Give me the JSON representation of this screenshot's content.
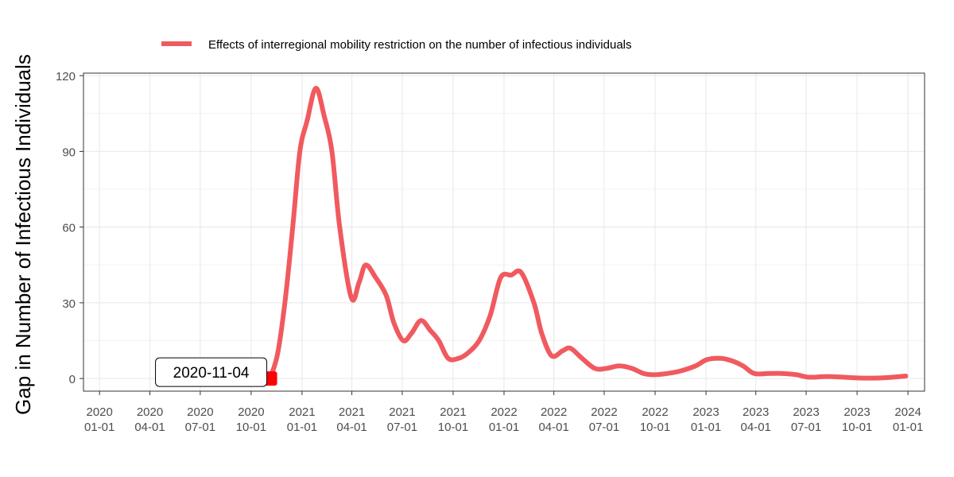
{
  "chart_data": {
    "type": "line",
    "title": "",
    "xlabel": "",
    "ylabel": "Gap in Number of Infectious Individuals",
    "legend_position": "top",
    "grid": true,
    "ylim": [
      -5,
      121
    ],
    "xlim": [
      "2019-12-03",
      "2024-01-31"
    ],
    "yticks": [
      0,
      30,
      60,
      90,
      120
    ],
    "xticks": [
      {
        "date": "2020-01-01",
        "label": [
          "2020",
          "01-01"
        ]
      },
      {
        "date": "2020-04-01",
        "label": [
          "2020",
          "04-01"
        ]
      },
      {
        "date": "2020-07-01",
        "label": [
          "2020",
          "07-01"
        ]
      },
      {
        "date": "2020-10-01",
        "label": [
          "2020",
          "10-01"
        ]
      },
      {
        "date": "2021-01-01",
        "label": [
          "2021",
          "01-01"
        ]
      },
      {
        "date": "2021-04-01",
        "label": [
          "2021",
          "04-01"
        ]
      },
      {
        "date": "2021-07-01",
        "label": [
          "2021",
          "07-01"
        ]
      },
      {
        "date": "2021-10-01",
        "label": [
          "2021",
          "10-01"
        ]
      },
      {
        "date": "2022-01-01",
        "label": [
          "2022",
          "01-01"
        ]
      },
      {
        "date": "2022-04-01",
        "label": [
          "2022",
          "04-01"
        ]
      },
      {
        "date": "2022-07-01",
        "label": [
          "2022",
          "07-01"
        ]
      },
      {
        "date": "2022-10-01",
        "label": [
          "2022",
          "10-01"
        ]
      },
      {
        "date": "2023-01-01",
        "label": [
          "2023",
          "01-01"
        ]
      },
      {
        "date": "2023-04-01",
        "label": [
          "2023",
          "04-01"
        ]
      },
      {
        "date": "2023-07-01",
        "label": [
          "2023",
          "07-01"
        ]
      },
      {
        "date": "2023-10-01",
        "label": [
          "2023",
          "10-01"
        ]
      },
      {
        "date": "2024-01-01",
        "label": [
          "2024",
          "01-01"
        ]
      }
    ],
    "series": [
      {
        "name": "Effects of interregional mobility restriction on the number of infectious individuals",
        "color": "#F05A5F",
        "points": [
          {
            "x": "2020-11-04",
            "y": 0
          },
          {
            "x": "2020-11-18",
            "y": 10
          },
          {
            "x": "2020-12-02",
            "y": 32
          },
          {
            "x": "2020-12-16",
            "y": 62
          },
          {
            "x": "2020-12-28",
            "y": 90
          },
          {
            "x": "2021-01-10",
            "y": 102
          },
          {
            "x": "2021-01-26",
            "y": 115
          },
          {
            "x": "2021-02-10",
            "y": 104
          },
          {
            "x": "2021-02-24",
            "y": 90
          },
          {
            "x": "2021-03-10",
            "y": 60
          },
          {
            "x": "2021-03-31",
            "y": 32
          },
          {
            "x": "2021-04-14",
            "y": 38
          },
          {
            "x": "2021-04-26",
            "y": 45
          },
          {
            "x": "2021-05-14",
            "y": 40
          },
          {
            "x": "2021-06-02",
            "y": 33
          },
          {
            "x": "2021-06-16",
            "y": 22
          },
          {
            "x": "2021-07-03",
            "y": 15
          },
          {
            "x": "2021-07-18",
            "y": 18
          },
          {
            "x": "2021-08-04",
            "y": 23
          },
          {
            "x": "2021-08-21",
            "y": 19
          },
          {
            "x": "2021-09-05",
            "y": 15
          },
          {
            "x": "2021-09-22",
            "y": 8
          },
          {
            "x": "2021-10-11",
            "y": 8
          },
          {
            "x": "2021-10-27",
            "y": 10
          },
          {
            "x": "2021-11-17",
            "y": 15
          },
          {
            "x": "2021-12-07",
            "y": 25
          },
          {
            "x": "2021-12-26",
            "y": 40
          },
          {
            "x": "2022-01-14",
            "y": 41
          },
          {
            "x": "2022-02-01",
            "y": 42
          },
          {
            "x": "2022-02-24",
            "y": 30
          },
          {
            "x": "2022-03-10",
            "y": 18
          },
          {
            "x": "2022-03-28",
            "y": 9
          },
          {
            "x": "2022-04-17",
            "y": 11
          },
          {
            "x": "2022-05-01",
            "y": 12
          },
          {
            "x": "2022-05-22",
            "y": 8
          },
          {
            "x": "2022-06-14",
            "y": 4
          },
          {
            "x": "2022-07-05",
            "y": 4
          },
          {
            "x": "2022-07-28",
            "y": 5
          },
          {
            "x": "2022-08-20",
            "y": 4
          },
          {
            "x": "2022-09-10",
            "y": 2
          },
          {
            "x": "2022-09-28",
            "y": 1.5
          },
          {
            "x": "2022-10-23",
            "y": 2
          },
          {
            "x": "2022-11-16",
            "y": 3
          },
          {
            "x": "2022-12-13",
            "y": 5
          },
          {
            "x": "2023-01-03",
            "y": 7.5
          },
          {
            "x": "2023-01-28",
            "y": 8
          },
          {
            "x": "2023-02-17",
            "y": 7
          },
          {
            "x": "2023-03-09",
            "y": 5
          },
          {
            "x": "2023-03-29",
            "y": 2
          },
          {
            "x": "2023-04-24",
            "y": 2
          },
          {
            "x": "2023-05-17",
            "y": 2
          },
          {
            "x": "2023-06-14",
            "y": 1.5
          },
          {
            "x": "2023-07-06",
            "y": 0.5
          },
          {
            "x": "2023-08-07",
            "y": 0.8
          },
          {
            "x": "2023-09-08",
            "y": 0.5
          },
          {
            "x": "2023-10-06",
            "y": 0.2
          },
          {
            "x": "2023-11-06",
            "y": 0.2
          },
          {
            "x": "2023-12-03",
            "y": 0.5
          },
          {
            "x": "2023-12-28",
            "y": 1
          }
        ]
      }
    ],
    "annotations": [
      {
        "label": "2020-11-04",
        "x": "2020-11-04",
        "y": 0,
        "marker_color": "#FF0000"
      }
    ]
  }
}
